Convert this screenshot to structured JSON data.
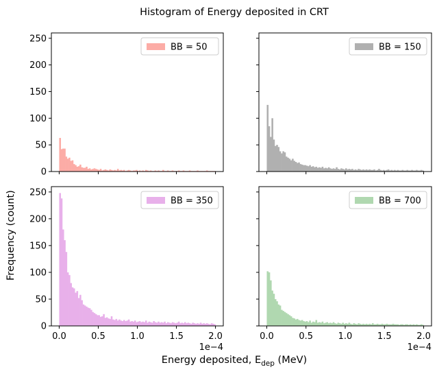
{
  "chart_data": {
    "type": "bar",
    "title": "Histogram of Energy deposited in CRT",
    "ylabel": "Frequency (count)",
    "xlabel_main": "Energy deposited, E",
    "xlabel_sub": "dep",
    "xlabel_unit": " (MeV)",
    "x_exponent_label": "1e−4",
    "xlim": [
      -0.1,
      2.1
    ],
    "ylim": [
      0,
      260
    ],
    "x_ticks": [
      0.0,
      0.5,
      1.0,
      1.5,
      2.0
    ],
    "x_tick_labels": [
      "0.0",
      "0.5",
      "1.0",
      "1.5",
      "2.0"
    ],
    "y_ticks": [
      0,
      50,
      100,
      150,
      200,
      250
    ],
    "y_tick_labels": [
      "0",
      "50",
      "100",
      "150",
      "200",
      "250"
    ],
    "bin_width": 0.02,
    "legend_position": "upper-right",
    "panels": [
      {
        "name": "BB = 50",
        "color": "#fcaca6",
        "values": [
          63,
          42,
          43,
          43,
          28,
          24,
          26,
          20,
          21,
          14,
          12,
          9,
          10,
          13,
          8,
          7,
          7,
          9,
          5,
          6,
          4,
          5,
          6,
          5,
          4,
          3,
          5,
          2,
          3,
          4,
          3,
          2,
          4,
          3,
          2,
          3,
          2,
          5,
          2,
          3,
          2,
          3,
          1,
          2,
          3,
          2,
          1,
          2,
          2,
          3,
          1,
          2,
          1,
          2,
          1,
          3,
          2,
          1,
          2,
          1,
          1,
          2,
          1,
          2,
          1,
          1,
          3,
          1,
          1,
          2,
          1,
          1,
          2,
          1,
          1,
          1,
          2,
          1,
          1,
          2,
          1,
          1,
          1,
          2,
          1,
          1,
          1,
          1,
          2,
          1,
          1,
          1,
          1,
          1,
          2,
          1,
          1,
          1,
          1,
          1
        ]
      },
      {
        "name": "BB = 150",
        "color": "#b0b0b0",
        "values": [
          125,
          85,
          65,
          100,
          60,
          48,
          50,
          46,
          38,
          34,
          38,
          36,
          28,
          26,
          24,
          21,
          24,
          20,
          18,
          16,
          17,
          14,
          13,
          12,
          12,
          11,
          10,
          12,
          9,
          10,
          8,
          9,
          7,
          8,
          7,
          9,
          6,
          7,
          6,
          8,
          6,
          5,
          6,
          5,
          8,
          5,
          4,
          6,
          5,
          4,
          6,
          4,
          5,
          4,
          5,
          3,
          4,
          3,
          5,
          4,
          3,
          4,
          3,
          4,
          3,
          4,
          3,
          3,
          4,
          2,
          3,
          5,
          3,
          2,
          3,
          2,
          3,
          4,
          2,
          3,
          2,
          3,
          2,
          3,
          2,
          2,
          3,
          2,
          2,
          3,
          2,
          2,
          3,
          2,
          2,
          3,
          2,
          2,
          3,
          2
        ]
      },
      {
        "name": "BB = 350",
        "color": "#e8b0ea",
        "values": [
          248,
          238,
          180,
          160,
          138,
          100,
          95,
          80,
          72,
          70,
          62,
          65,
          52,
          58,
          48,
          40,
          38,
          36,
          34,
          33,
          30,
          26,
          24,
          22,
          20,
          20,
          17,
          18,
          22,
          15,
          16,
          14,
          13,
          18,
          12,
          11,
          13,
          10,
          12,
          10,
          9,
          11,
          9,
          10,
          12,
          8,
          9,
          8,
          10,
          7,
          8,
          9,
          7,
          8,
          7,
          10,
          6,
          8,
          7,
          6,
          9,
          7,
          6,
          8,
          6,
          7,
          6,
          8,
          5,
          7,
          6,
          5,
          7,
          6,
          5,
          6,
          8,
          5,
          6,
          5,
          7,
          5,
          6,
          5,
          4,
          6,
          5,
          4,
          5,
          4,
          6,
          4,
          5,
          4,
          5,
          4,
          3,
          5,
          4,
          3
        ]
      },
      {
        "name": "BB = 700",
        "color": "#b0d8b0",
        "values": [
          102,
          100,
          85,
          66,
          60,
          50,
          46,
          40,
          38,
          30,
          28,
          26,
          24,
          22,
          20,
          18,
          15,
          14,
          12,
          13,
          11,
          10,
          11,
          9,
          8,
          9,
          7,
          10,
          6,
          8,
          7,
          11,
          6,
          7,
          6,
          8,
          5,
          6,
          7,
          5,
          6,
          5,
          7,
          5,
          4,
          6,
          5,
          4,
          6,
          4,
          5,
          4,
          6,
          4,
          3,
          5,
          4,
          3,
          5,
          4,
          3,
          4,
          3,
          4,
          3,
          4,
          3,
          5,
          3,
          3,
          4,
          3,
          3,
          4,
          3,
          3,
          4,
          3,
          3,
          3,
          4,
          3,
          3,
          3,
          2,
          3,
          3,
          2,
          3,
          3,
          2,
          3,
          2,
          3,
          2,
          3,
          2,
          2,
          3,
          2
        ]
      }
    ]
  }
}
